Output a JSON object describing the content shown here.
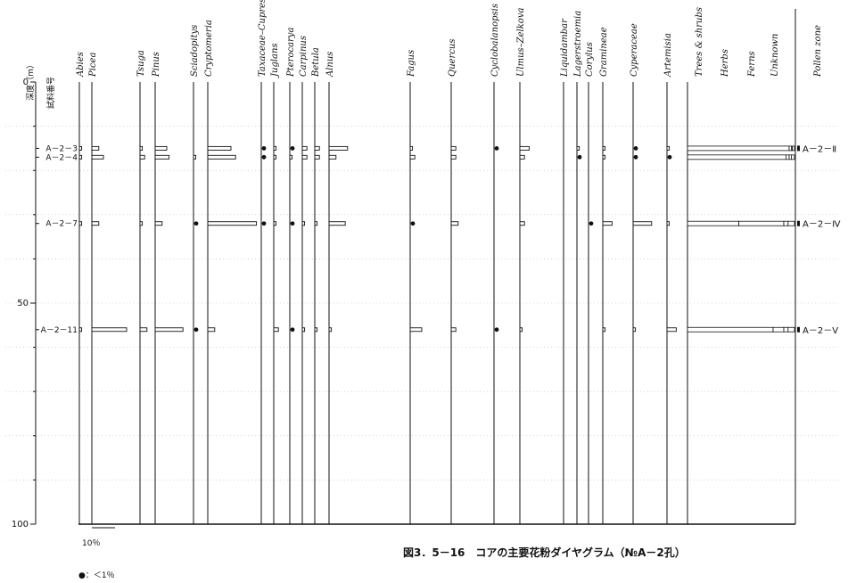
{
  "chart_data": {
    "type": "pollen-diagram",
    "title": "図3．5－16　コアの主要花粉ダイヤグラム（№A－2孔）",
    "depth_label": "深度（m）",
    "sample_label": "試料番号",
    "zone_header": "Pollen zone",
    "depth_ticks": [
      "0",
      "50",
      "100"
    ],
    "scale_label": "10％",
    "legend_text": "●：＜1％",
    "depth_range": [
      0,
      100
    ],
    "taxa": [
      "Abies",
      "Picea",
      "Tsuga",
      "Pinus",
      "Sciadopitys",
      "Cryptomeria",
      "Taxaceae–Cupressaceae",
      "Juglans",
      "Pterocarya",
      "Carpinus",
      "Betula",
      "Alnus",
      "Fagus",
      "Quercus",
      "Cyclobalanopsis",
      "Ulmus–Zelkova",
      "Liquidambar",
      "Lagerstroemia",
      "Corylus",
      "Gramineae",
      "Cyperaceae",
      "Artemisia"
    ],
    "composition_headers": [
      "Trees & shrubs",
      "Herbs",
      "Ferns",
      "Unknown"
    ],
    "samples": [
      {
        "id": "A－2－3",
        "depth": 15,
        "zone": "A－2－Ⅱ",
        "values": [
          1,
          3,
          1,
          5,
          0,
          10,
          0.5,
          1,
          0.5,
          2,
          2,
          8,
          1,
          2,
          0.5,
          4,
          0,
          1,
          0,
          1,
          0.5,
          1
        ],
        "composition": [
          95,
          2,
          1,
          2
        ]
      },
      {
        "id": "A－2－4",
        "depth": 17,
        "zone": "",
        "values": [
          1,
          5,
          2,
          6,
          1,
          12,
          0.5,
          1,
          1,
          2,
          2,
          3,
          2,
          2,
          0,
          2,
          0,
          0.5,
          0,
          1,
          0.5,
          0.5
        ],
        "composition": [
          92,
          3,
          2,
          3
        ]
      },
      {
        "id": "A－2－7",
        "depth": 32,
        "zone": "A－2－Ⅳ",
        "values": [
          1,
          3,
          1,
          3,
          0.5,
          21,
          0.5,
          1,
          0.5,
          1,
          1,
          7,
          0.5,
          3,
          0,
          2,
          0,
          0,
          0.5,
          4,
          8,
          1
        ],
        "composition": [
          48,
          42,
          4,
          6
        ]
      },
      {
        "id": "A－2－11",
        "depth": 56,
        "zone": "A－2－Ⅴ",
        "values": [
          1,
          15,
          3,
          12,
          0.5,
          3,
          0,
          2,
          0.5,
          1,
          1,
          1,
          5,
          2,
          0.5,
          1,
          0,
          0,
          0,
          1,
          1,
          4
        ],
        "composition": [
          80,
          10,
          4,
          6
        ]
      }
    ]
  }
}
